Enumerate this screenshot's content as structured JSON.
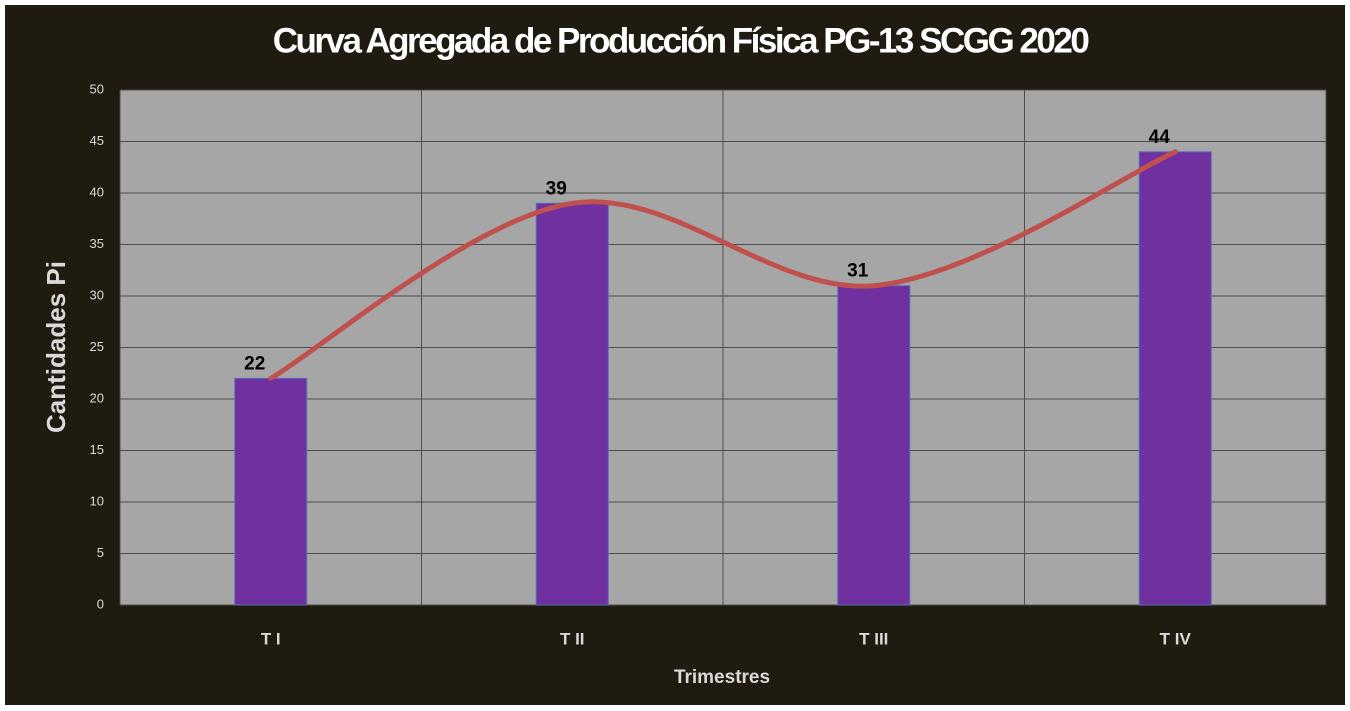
{
  "chart_data": {
    "type": "bar",
    "title": "Curva Agregada de Producción Física PG-13 SCGG 2020",
    "x_label": "Trimestres",
    "y_label": "Cantidades Pi",
    "categories": [
      "T I",
      "T II",
      "T III",
      "T IV"
    ],
    "values": [
      22,
      39,
      31,
      44
    ],
    "color": "#7030a0",
    "smooth_line": true,
    "line_color": "#c0504d",
    "ylim": [
      0,
      50
    ],
    "yticks": [
      0,
      5,
      10,
      15,
      20,
      25,
      30,
      35,
      40,
      45,
      50
    ],
    "grid": true
  }
}
